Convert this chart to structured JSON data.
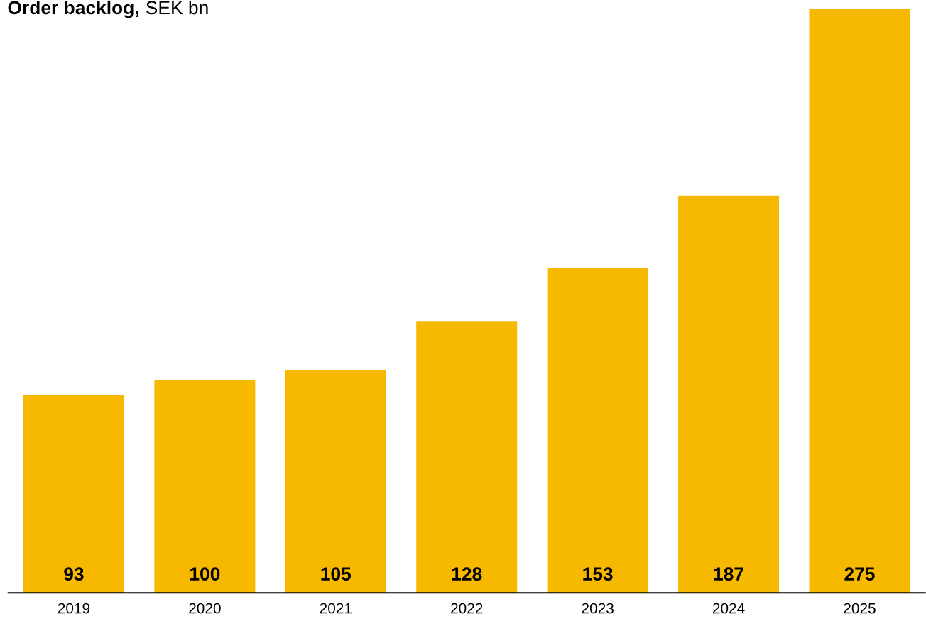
{
  "chart_data": {
    "type": "bar",
    "title": "Order backlog,",
    "subtitle": "SEK bn",
    "categories": [
      "2019",
      "2020",
      "2021",
      "2022",
      "2023",
      "2024",
      "2025"
    ],
    "values": [
      93,
      100,
      105,
      128,
      153,
      187,
      275
    ],
    "color": "#f7b900",
    "data_labels": true,
    "grid": false,
    "legend": false
  }
}
